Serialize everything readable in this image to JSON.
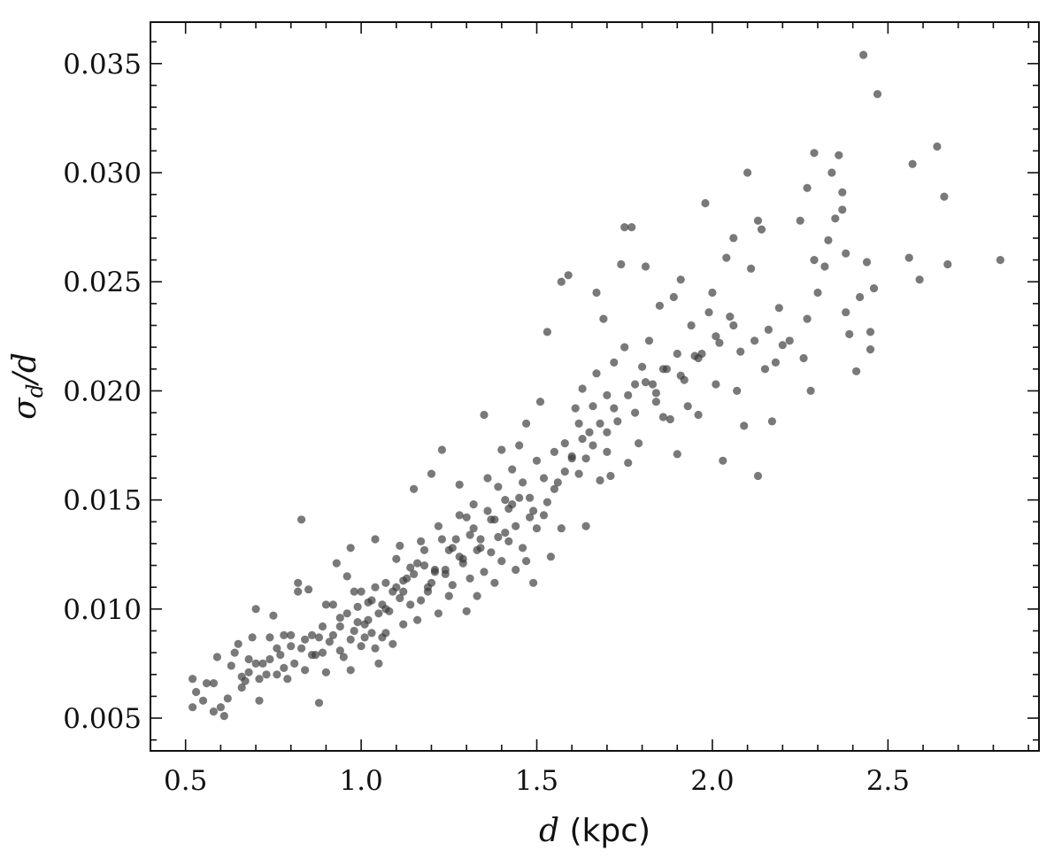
{
  "chart_data": {
    "type": "scatter",
    "title": "",
    "xlabel_var": "d",
    "xlabel_unit": "(kpc)",
    "ylabel_sym": "σ",
    "ylabel_sub": "d",
    "ylabel_rest": "/d",
    "xlim": [
      0.4,
      2.93
    ],
    "ylim": [
      0.0035,
      0.0369
    ],
    "xticks": [
      0.5,
      1.0,
      1.5,
      2.0,
      2.5
    ],
    "xtick_labels": [
      "0.5",
      "1.0",
      "1.5",
      "2.0",
      "2.5"
    ],
    "yticks": [
      0.005,
      0.01,
      0.015,
      0.02,
      0.025,
      0.03,
      0.035
    ],
    "ytick_labels": [
      "0.005",
      "0.010",
      "0.015",
      "0.020",
      "0.025",
      "0.030",
      "0.035"
    ],
    "grid": false,
    "point_color": "#3a3a3a",
    "series": [
      {
        "points": [
          [
            0.52,
            0.0068
          ],
          [
            0.53,
            0.0062
          ],
          [
            0.52,
            0.0055
          ],
          [
            0.55,
            0.0058
          ],
          [
            0.56,
            0.0066
          ],
          [
            0.58,
            0.0066
          ],
          [
            0.58,
            0.0053
          ],
          [
            0.59,
            0.0078
          ],
          [
            0.6,
            0.0055
          ],
          [
            0.61,
            0.0051
          ],
          [
            0.62,
            0.0059
          ],
          [
            0.63,
            0.0074
          ],
          [
            0.64,
            0.008
          ],
          [
            0.65,
            0.0084
          ],
          [
            0.66,
            0.0069
          ],
          [
            0.67,
            0.0067
          ],
          [
            0.68,
            0.0077
          ],
          [
            0.69,
            0.0087
          ],
          [
            0.7,
            0.0075
          ],
          [
            0.7,
            0.01
          ],
          [
            0.71,
            0.0058
          ],
          [
            0.72,
            0.0075
          ],
          [
            0.73,
            0.007
          ],
          [
            0.74,
            0.0087
          ],
          [
            0.75,
            0.0097
          ],
          [
            0.76,
            0.0082
          ],
          [
            0.77,
            0.0079
          ],
          [
            0.78,
            0.0088
          ],
          [
            0.79,
            0.0068
          ],
          [
            0.8,
            0.0088
          ],
          [
            0.81,
            0.0075
          ],
          [
            0.82,
            0.0108
          ],
          [
            0.82,
            0.0112
          ],
          [
            0.83,
            0.0141
          ],
          [
            0.83,
            0.0082
          ],
          [
            0.84,
            0.0072
          ],
          [
            0.85,
            0.0109
          ],
          [
            0.86,
            0.0088
          ],
          [
            0.87,
            0.0079
          ],
          [
            0.88,
            0.0087
          ],
          [
            0.88,
            0.0057
          ],
          [
            0.89,
            0.008
          ],
          [
            0.9,
            0.0102
          ],
          [
            0.9,
            0.0071
          ],
          [
            0.91,
            0.0085
          ],
          [
            0.92,
            0.0102
          ],
          [
            0.93,
            0.0121
          ],
          [
            0.94,
            0.0092
          ],
          [
            0.94,
            0.0081
          ],
          [
            0.95,
            0.0078
          ],
          [
            0.96,
            0.0098
          ],
          [
            0.96,
            0.0115
          ],
          [
            0.97,
            0.0128
          ],
          [
            0.97,
            0.0072
          ],
          [
            0.98,
            0.0108
          ],
          [
            0.99,
            0.0094
          ],
          [
            1.0,
            0.0083
          ],
          [
            1.0,
            0.0108
          ],
          [
            1.01,
            0.0087
          ],
          [
            1.02,
            0.0103
          ],
          [
            1.02,
            0.0095
          ],
          [
            1.03,
            0.0089
          ],
          [
            1.03,
            0.0104
          ],
          [
            1.04,
            0.0132
          ],
          [
            1.04,
            0.0082
          ],
          [
            1.05,
            0.0075
          ],
          [
            1.05,
            0.0098
          ],
          [
            1.06,
            0.0087
          ],
          [
            1.07,
            0.0089
          ],
          [
            1.07,
            0.0112
          ],
          [
            1.08,
            0.0099
          ],
          [
            1.09,
            0.0084
          ],
          [
            1.1,
            0.011
          ],
          [
            1.1,
            0.0123
          ],
          [
            1.11,
            0.0129
          ],
          [
            1.12,
            0.0093
          ],
          [
            1.12,
            0.0108
          ],
          [
            1.13,
            0.0114
          ],
          [
            1.14,
            0.0102
          ],
          [
            1.15,
            0.0116
          ],
          [
            1.15,
            0.0155
          ],
          [
            1.16,
            0.0095
          ],
          [
            1.17,
            0.0131
          ],
          [
            1.17,
            0.0104
          ],
          [
            1.18,
            0.012
          ],
          [
            1.19,
            0.0108
          ],
          [
            1.2,
            0.0112
          ],
          [
            1.2,
            0.0162
          ],
          [
            1.21,
            0.0117
          ],
          [
            1.22,
            0.0098
          ],
          [
            1.22,
            0.0138
          ],
          [
            1.23,
            0.0173
          ],
          [
            1.24,
            0.0118
          ],
          [
            1.25,
            0.0106
          ],
          [
            1.25,
            0.0127
          ],
          [
            1.26,
            0.0111
          ],
          [
            1.27,
            0.0132
          ],
          [
            1.28,
            0.0124
          ],
          [
            1.28,
            0.0157
          ],
          [
            1.29,
            0.0121
          ],
          [
            1.3,
            0.0142
          ],
          [
            1.3,
            0.0099
          ],
          [
            1.31,
            0.0114
          ],
          [
            1.32,
            0.0137
          ],
          [
            1.33,
            0.0106
          ],
          [
            1.33,
            0.0127
          ],
          [
            1.34,
            0.0132
          ],
          [
            1.35,
            0.0189
          ],
          [
            1.35,
            0.0117
          ],
          [
            1.36,
            0.0145
          ],
          [
            1.37,
            0.0126
          ],
          [
            1.38,
            0.0141
          ],
          [
            1.38,
            0.0112
          ],
          [
            1.39,
            0.0156
          ],
          [
            1.4,
            0.0122
          ],
          [
            1.4,
            0.0173
          ],
          [
            1.41,
            0.0135
          ],
          [
            1.42,
            0.0131
          ],
          [
            1.43,
            0.0164
          ],
          [
            1.43,
            0.0148
          ],
          [
            1.44,
            0.0118
          ],
          [
            1.45,
            0.0151
          ],
          [
            1.45,
            0.0175
          ],
          [
            1.46,
            0.0128
          ],
          [
            1.47,
            0.0122
          ],
          [
            1.47,
            0.0185
          ],
          [
            1.48,
            0.0142
          ],
          [
            1.49,
            0.0112
          ],
          [
            1.5,
            0.0168
          ],
          [
            1.5,
            0.0137
          ],
          [
            1.51,
            0.0195
          ],
          [
            1.52,
            0.0143
          ],
          [
            1.53,
            0.0227
          ],
          [
            1.53,
            0.0149
          ],
          [
            1.54,
            0.0124
          ],
          [
            1.55,
            0.0172
          ],
          [
            1.56,
            0.0158
          ],
          [
            1.57,
            0.025
          ],
          [
            1.57,
            0.0137
          ],
          [
            1.58,
            0.0176
          ],
          [
            1.59,
            0.0253
          ],
          [
            1.6,
            0.0169
          ],
          [
            1.61,
            0.0192
          ],
          [
            1.62,
            0.0162
          ],
          [
            1.62,
            0.0185
          ],
          [
            1.63,
            0.0201
          ],
          [
            1.64,
            0.0138
          ],
          [
            1.64,
            0.0169
          ],
          [
            1.65,
            0.0181
          ],
          [
            1.66,
            0.0193
          ],
          [
            1.67,
            0.0245
          ],
          [
            1.67,
            0.0208
          ],
          [
            1.68,
            0.0159
          ],
          [
            1.69,
            0.0233
          ],
          [
            1.7,
            0.0172
          ],
          [
            1.7,
            0.0198
          ],
          [
            1.71,
            0.0161
          ],
          [
            1.72,
            0.0213
          ],
          [
            1.73,
            0.0186
          ],
          [
            1.74,
            0.0258
          ],
          [
            1.75,
            0.0275
          ],
          [
            1.75,
            0.022
          ],
          [
            1.76,
            0.0167
          ],
          [
            1.77,
            0.0275
          ],
          [
            1.78,
            0.0203
          ],
          [
            1.79,
            0.0176
          ],
          [
            1.8,
            0.0211
          ],
          [
            1.81,
            0.0257
          ],
          [
            1.82,
            0.0223
          ],
          [
            1.83,
            0.0203
          ],
          [
            1.84,
            0.0195
          ],
          [
            1.85,
            0.0239
          ],
          [
            1.86,
            0.0188
          ],
          [
            1.87,
            0.021
          ],
          [
            1.88,
            0.0187
          ],
          [
            1.89,
            0.0243
          ],
          [
            1.9,
            0.0171
          ],
          [
            1.91,
            0.0251
          ],
          [
            1.92,
            0.0205
          ],
          [
            1.93,
            0.0193
          ],
          [
            1.94,
            0.023
          ],
          [
            1.95,
            0.0216
          ],
          [
            1.96,
            0.0189
          ],
          [
            1.97,
            0.0217
          ],
          [
            1.98,
            0.0286
          ],
          [
            1.99,
            0.0236
          ],
          [
            2.0,
            0.0245
          ],
          [
            2.01,
            0.0203
          ],
          [
            2.02,
            0.0222
          ],
          [
            2.03,
            0.0168
          ],
          [
            2.04,
            0.0261
          ],
          [
            2.05,
            0.0234
          ],
          [
            2.06,
            0.027
          ],
          [
            2.07,
            0.02
          ],
          [
            2.08,
            0.0218
          ],
          [
            2.09,
            0.0184
          ],
          [
            2.1,
            0.03
          ],
          [
            2.11,
            0.0256
          ],
          [
            2.12,
            0.0223
          ],
          [
            2.13,
            0.0278
          ],
          [
            2.13,
            0.0161
          ],
          [
            2.14,
            0.0274
          ],
          [
            2.15,
            0.021
          ],
          [
            2.16,
            0.0228
          ],
          [
            2.17,
            0.0186
          ],
          [
            2.18,
            0.0213
          ],
          [
            2.19,
            0.0238
          ],
          [
            2.2,
            0.0221
          ],
          [
            2.22,
            0.0223
          ],
          [
            2.25,
            0.0278
          ],
          [
            2.26,
            0.0215
          ],
          [
            2.27,
            0.0293
          ],
          [
            2.27,
            0.0233
          ],
          [
            2.28,
            0.02
          ],
          [
            2.29,
            0.0309
          ],
          [
            2.29,
            0.026
          ],
          [
            2.3,
            0.0245
          ],
          [
            2.32,
            0.0257
          ],
          [
            2.33,
            0.0269
          ],
          [
            2.34,
            0.03
          ],
          [
            2.35,
            0.0279
          ],
          [
            2.36,
            0.0308
          ],
          [
            2.37,
            0.0291
          ],
          [
            2.37,
            0.0283
          ],
          [
            2.38,
            0.0263
          ],
          [
            2.38,
            0.0236
          ],
          [
            2.39,
            0.0226
          ],
          [
            2.41,
            0.0209
          ],
          [
            2.42,
            0.0243
          ],
          [
            2.43,
            0.0354
          ],
          [
            2.44,
            0.0259
          ],
          [
            2.45,
            0.0227
          ],
          [
            2.45,
            0.0219
          ],
          [
            2.46,
            0.0247
          ],
          [
            2.47,
            0.0336
          ],
          [
            2.56,
            0.0261
          ],
          [
            2.57,
            0.0304
          ],
          [
            2.59,
            0.0251
          ],
          [
            2.64,
            0.0312
          ],
          [
            2.66,
            0.0289
          ],
          [
            2.67,
            0.0258
          ],
          [
            2.82,
            0.026
          ],
          [
            1.36,
            0.016
          ],
          [
            1.28,
            0.0143
          ],
          [
            1.14,
            0.0119
          ],
          [
            1.06,
            0.0102
          ],
          [
            0.98,
            0.009
          ],
          [
            0.92,
            0.0088
          ],
          [
            0.86,
            0.0079
          ],
          [
            0.78,
            0.0073
          ],
          [
            0.74,
            0.0077
          ],
          [
            0.68,
            0.0071
          ],
          [
            1.18,
            0.0127
          ],
          [
            1.23,
            0.0132
          ],
          [
            1.32,
            0.0148
          ],
          [
            1.41,
            0.015
          ],
          [
            1.46,
            0.0158
          ],
          [
            1.52,
            0.016
          ],
          [
            1.58,
            0.0163
          ],
          [
            1.63,
            0.0178
          ],
          [
            1.68,
            0.0185
          ],
          [
            1.72,
            0.0192
          ],
          [
            1.76,
            0.0198
          ],
          [
            1.81,
            0.0204
          ],
          [
            1.86,
            0.021
          ],
          [
            1.91,
            0.0207
          ],
          [
            1.96,
            0.0215
          ],
          [
            2.01,
            0.0225
          ],
          [
            2.06,
            0.023
          ],
          [
            1.09,
            0.0108
          ],
          [
            1.12,
            0.0113
          ],
          [
            1.16,
            0.0121
          ],
          [
            1.21,
            0.0118
          ],
          [
            1.26,
            0.0128
          ],
          [
            1.31,
            0.0134
          ],
          [
            1.37,
            0.0141
          ],
          [
            1.42,
            0.0146
          ],
          [
            1.48,
            0.0151
          ],
          [
            0.8,
            0.0083
          ],
          [
            0.84,
            0.0086
          ],
          [
            0.89,
            0.0092
          ],
          [
            0.94,
            0.0096
          ],
          [
            0.99,
            0.0101
          ],
          [
            1.04,
            0.011
          ],
          [
            0.66,
            0.0064
          ],
          [
            0.71,
            0.0068
          ],
          [
            0.76,
            0.007
          ],
          [
            1.55,
            0.0155
          ],
          [
            1.6,
            0.017
          ],
          [
            1.66,
            0.0175
          ],
          [
            1.7,
            0.0181
          ],
          [
            1.78,
            0.019
          ],
          [
            1.84,
            0.0199
          ],
          [
            1.9,
            0.0217
          ],
          [
            0.97,
            0.0086
          ],
          [
            1.01,
            0.0093
          ],
          [
            1.07,
            0.01
          ],
          [
            1.11,
            0.0105
          ],
          [
            1.19,
            0.011
          ],
          [
            1.24,
            0.0116
          ],
          [
            1.29,
            0.0123
          ],
          [
            1.34,
            0.0128
          ],
          [
            1.39,
            0.0133
          ],
          [
            1.44,
            0.0138
          ],
          [
            1.49,
            0.0145
          ]
        ]
      }
    ]
  }
}
